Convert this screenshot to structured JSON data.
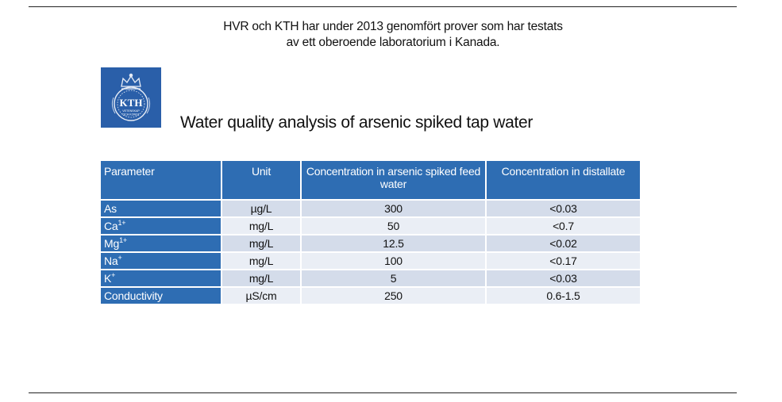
{
  "intro": {
    "line1": "HVR och KTH har under 2013 genomfört prover som har testats",
    "line2": "av ett oberoende laboratorium i Kanada."
  },
  "logo": {
    "text": "KTH",
    "subtext1": "VETENSKAP",
    "subtext2": "OCH KONST",
    "color": "#2a5fa9"
  },
  "title": "Water quality analysis of arsenic spiked tap water",
  "table": {
    "headers": [
      "Parameter",
      "Unit",
      "Concentration in arsenic spiked feed water",
      "Concentration in distallate"
    ],
    "rows": [
      {
        "param": "As",
        "sup": "",
        "unit": "µg/L",
        "feed": "300",
        "distillate": "<0.03"
      },
      {
        "param": "Ca",
        "sup": "1+",
        "unit": "mg/L",
        "feed": "50",
        "distillate": "<0.7"
      },
      {
        "param": "Mg",
        "sup": "1+",
        "unit": "mg/L",
        "feed": "12.5",
        "distillate": "<0.02"
      },
      {
        "param": "Na",
        "sup": "+",
        "unit": "mg/L",
        "feed": "100",
        "distillate": "<0.17"
      },
      {
        "param": "K",
        "sup": "+",
        "unit": "mg/L",
        "feed": "5",
        "distillate": "<0.03"
      },
      {
        "param": "Conductivity",
        "sup": "",
        "unit": "µS/cm",
        "feed": "250",
        "distillate": "0.6-1.5"
      }
    ]
  },
  "colors": {
    "header_blue": "#2e6db3",
    "row_dark": "#d4dcea",
    "row_light": "#eaeef5"
  }
}
